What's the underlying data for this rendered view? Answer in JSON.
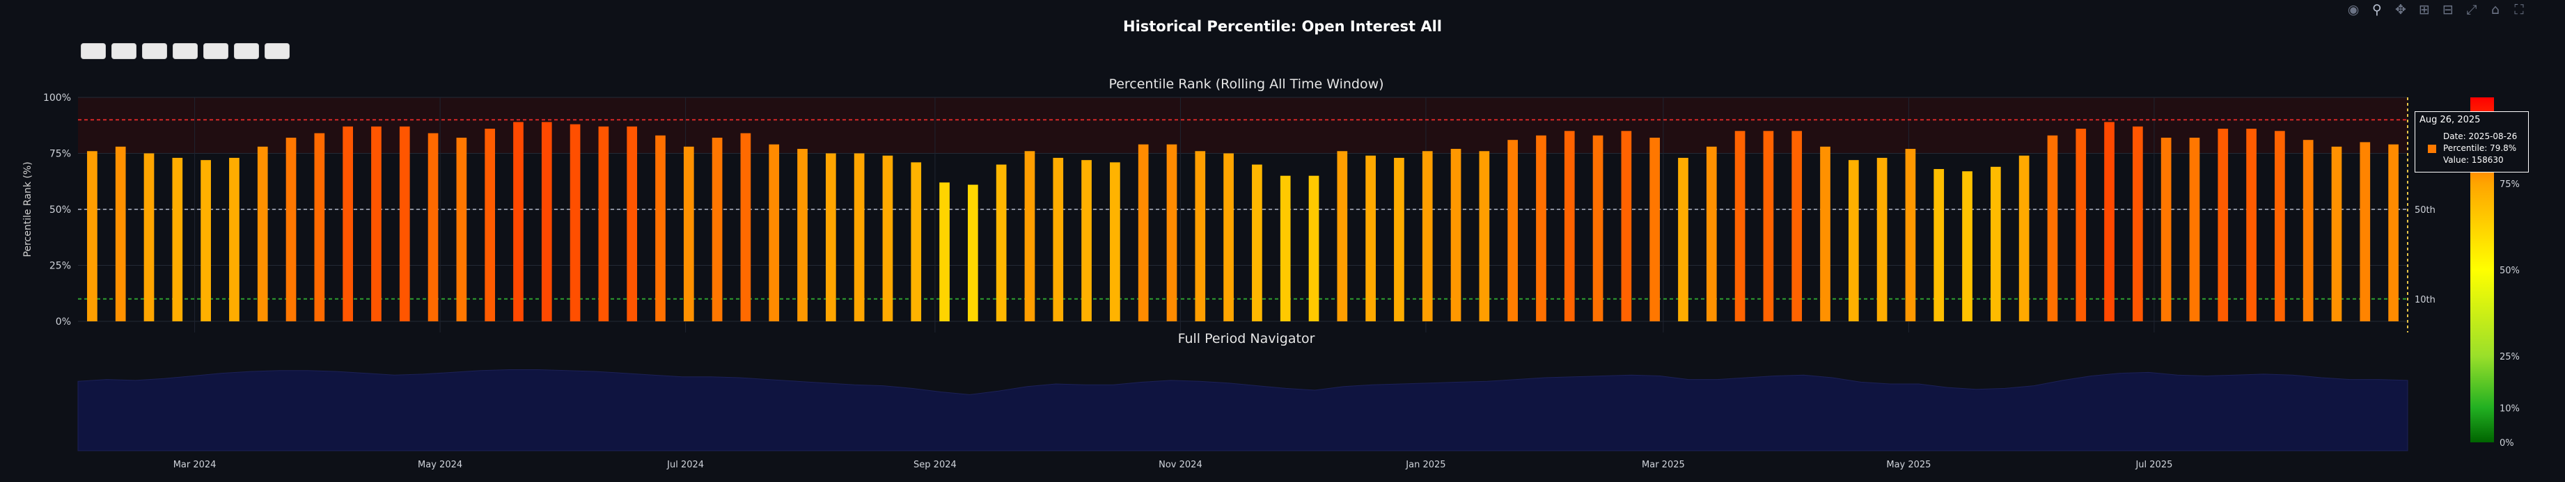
{
  "title": "Historical Percentile: Open Interest All",
  "range_buttons": [
    "",
    "",
    "",
    "",
    "",
    "",
    ""
  ],
  "modebar_icons": [
    "camera-icon",
    "zoom-icon",
    "pan-icon",
    "zoom-in-icon",
    "zoom-out-icon",
    "autoscale-icon",
    "reset-axes-icon",
    "fullscreen-icon"
  ],
  "chart_data": [
    {
      "type": "bar",
      "title": "Percentile Rank (Rolling All Time Window)",
      "ylabel": "Percentile Rank (%)",
      "ylim": [
        0,
        100
      ],
      "y_ticks": [
        "0%",
        "25%",
        "50%",
        "75%",
        "100%"
      ],
      "reference_lines": [
        {
          "value": 90,
          "color": "#d62828",
          "label": ""
        },
        {
          "value": 50,
          "color": "#8a8f9c",
          "label": "50th"
        },
        {
          "value": 10,
          "color": "#2f9e2f",
          "label": "10th"
        }
      ],
      "x_ticks": [
        {
          "date": "2024-03-01",
          "label": "Mar 2024"
        },
        {
          "date": "2024-05-01",
          "label": "May 2024"
        },
        {
          "date": "2024-07-01",
          "label": "Jul 2024"
        },
        {
          "date": "2024-09-01",
          "label": "Sep 2024"
        },
        {
          "date": "2024-11-01",
          "label": "Nov 2024"
        },
        {
          "date": "2025-01-01",
          "label": "Jan 2025"
        },
        {
          "date": "2025-03-01",
          "label": "Mar 2025"
        },
        {
          "date": "2025-05-01",
          "label": "May 2025"
        },
        {
          "date": "2025-07-01",
          "label": "Jul 2025"
        }
      ],
      "start_date": "2024-02-01",
      "end_date": "2025-09-02",
      "grid": true,
      "values": [
        76,
        78,
        75,
        73,
        72,
        73,
        78,
        82,
        84,
        87,
        87,
        87,
        84,
        82,
        86,
        89,
        89,
        88,
        87,
        87,
        83,
        78,
        82,
        84,
        79,
        77,
        75,
        75,
        74,
        71,
        62,
        61,
        70,
        76,
        73,
        72,
        71,
        79,
        79,
        76,
        75,
        70,
        65,
        65,
        76,
        74,
        73,
        76,
        77,
        76,
        81,
        83,
        85,
        83,
        85,
        82,
        73,
        78,
        85,
        85,
        85,
        78,
        72,
        73,
        77,
        68,
        67,
        69,
        74,
        83,
        86,
        89,
        87,
        82,
        82,
        86,
        86,
        85,
        81,
        78,
        80,
        79
      ]
    },
    {
      "type": "area",
      "title": "Full Period Navigator",
      "values": [
        78,
        80,
        79,
        81,
        84,
        87,
        89,
        90,
        90,
        89,
        87,
        85,
        86,
        88,
        90,
        91,
        91,
        90,
        89,
        87,
        85,
        83,
        83,
        82,
        80,
        78,
        76,
        74,
        73,
        70,
        66,
        63,
        67,
        72,
        75,
        74,
        74,
        77,
        79,
        78,
        76,
        73,
        70,
        68,
        72,
        74,
        75,
        76,
        77,
        78,
        80,
        82,
        83,
        84,
        85,
        84,
        80,
        80,
        82,
        84,
        85,
        82,
        77,
        75,
        75,
        71,
        69,
        70,
        73,
        79,
        84,
        87,
        88,
        85,
        84,
        85,
        86,
        85,
        82,
        80,
        80,
        79
      ]
    },
    {
      "type": "heatmap",
      "title": "",
      "colorscale": [
        "#006400",
        "#22b022",
        "#9adf2a",
        "#ffff00",
        "#ffa500",
        "#ff0000"
      ],
      "ticks": [
        "0%",
        "10%",
        "25%",
        "50%",
        "75%"
      ]
    }
  ],
  "tooltip": {
    "header": "Aug 26, 2025",
    "date": "Date: 2025-08-26",
    "percentile": "Percentile: 79.8%",
    "value": "Value: 158630"
  }
}
